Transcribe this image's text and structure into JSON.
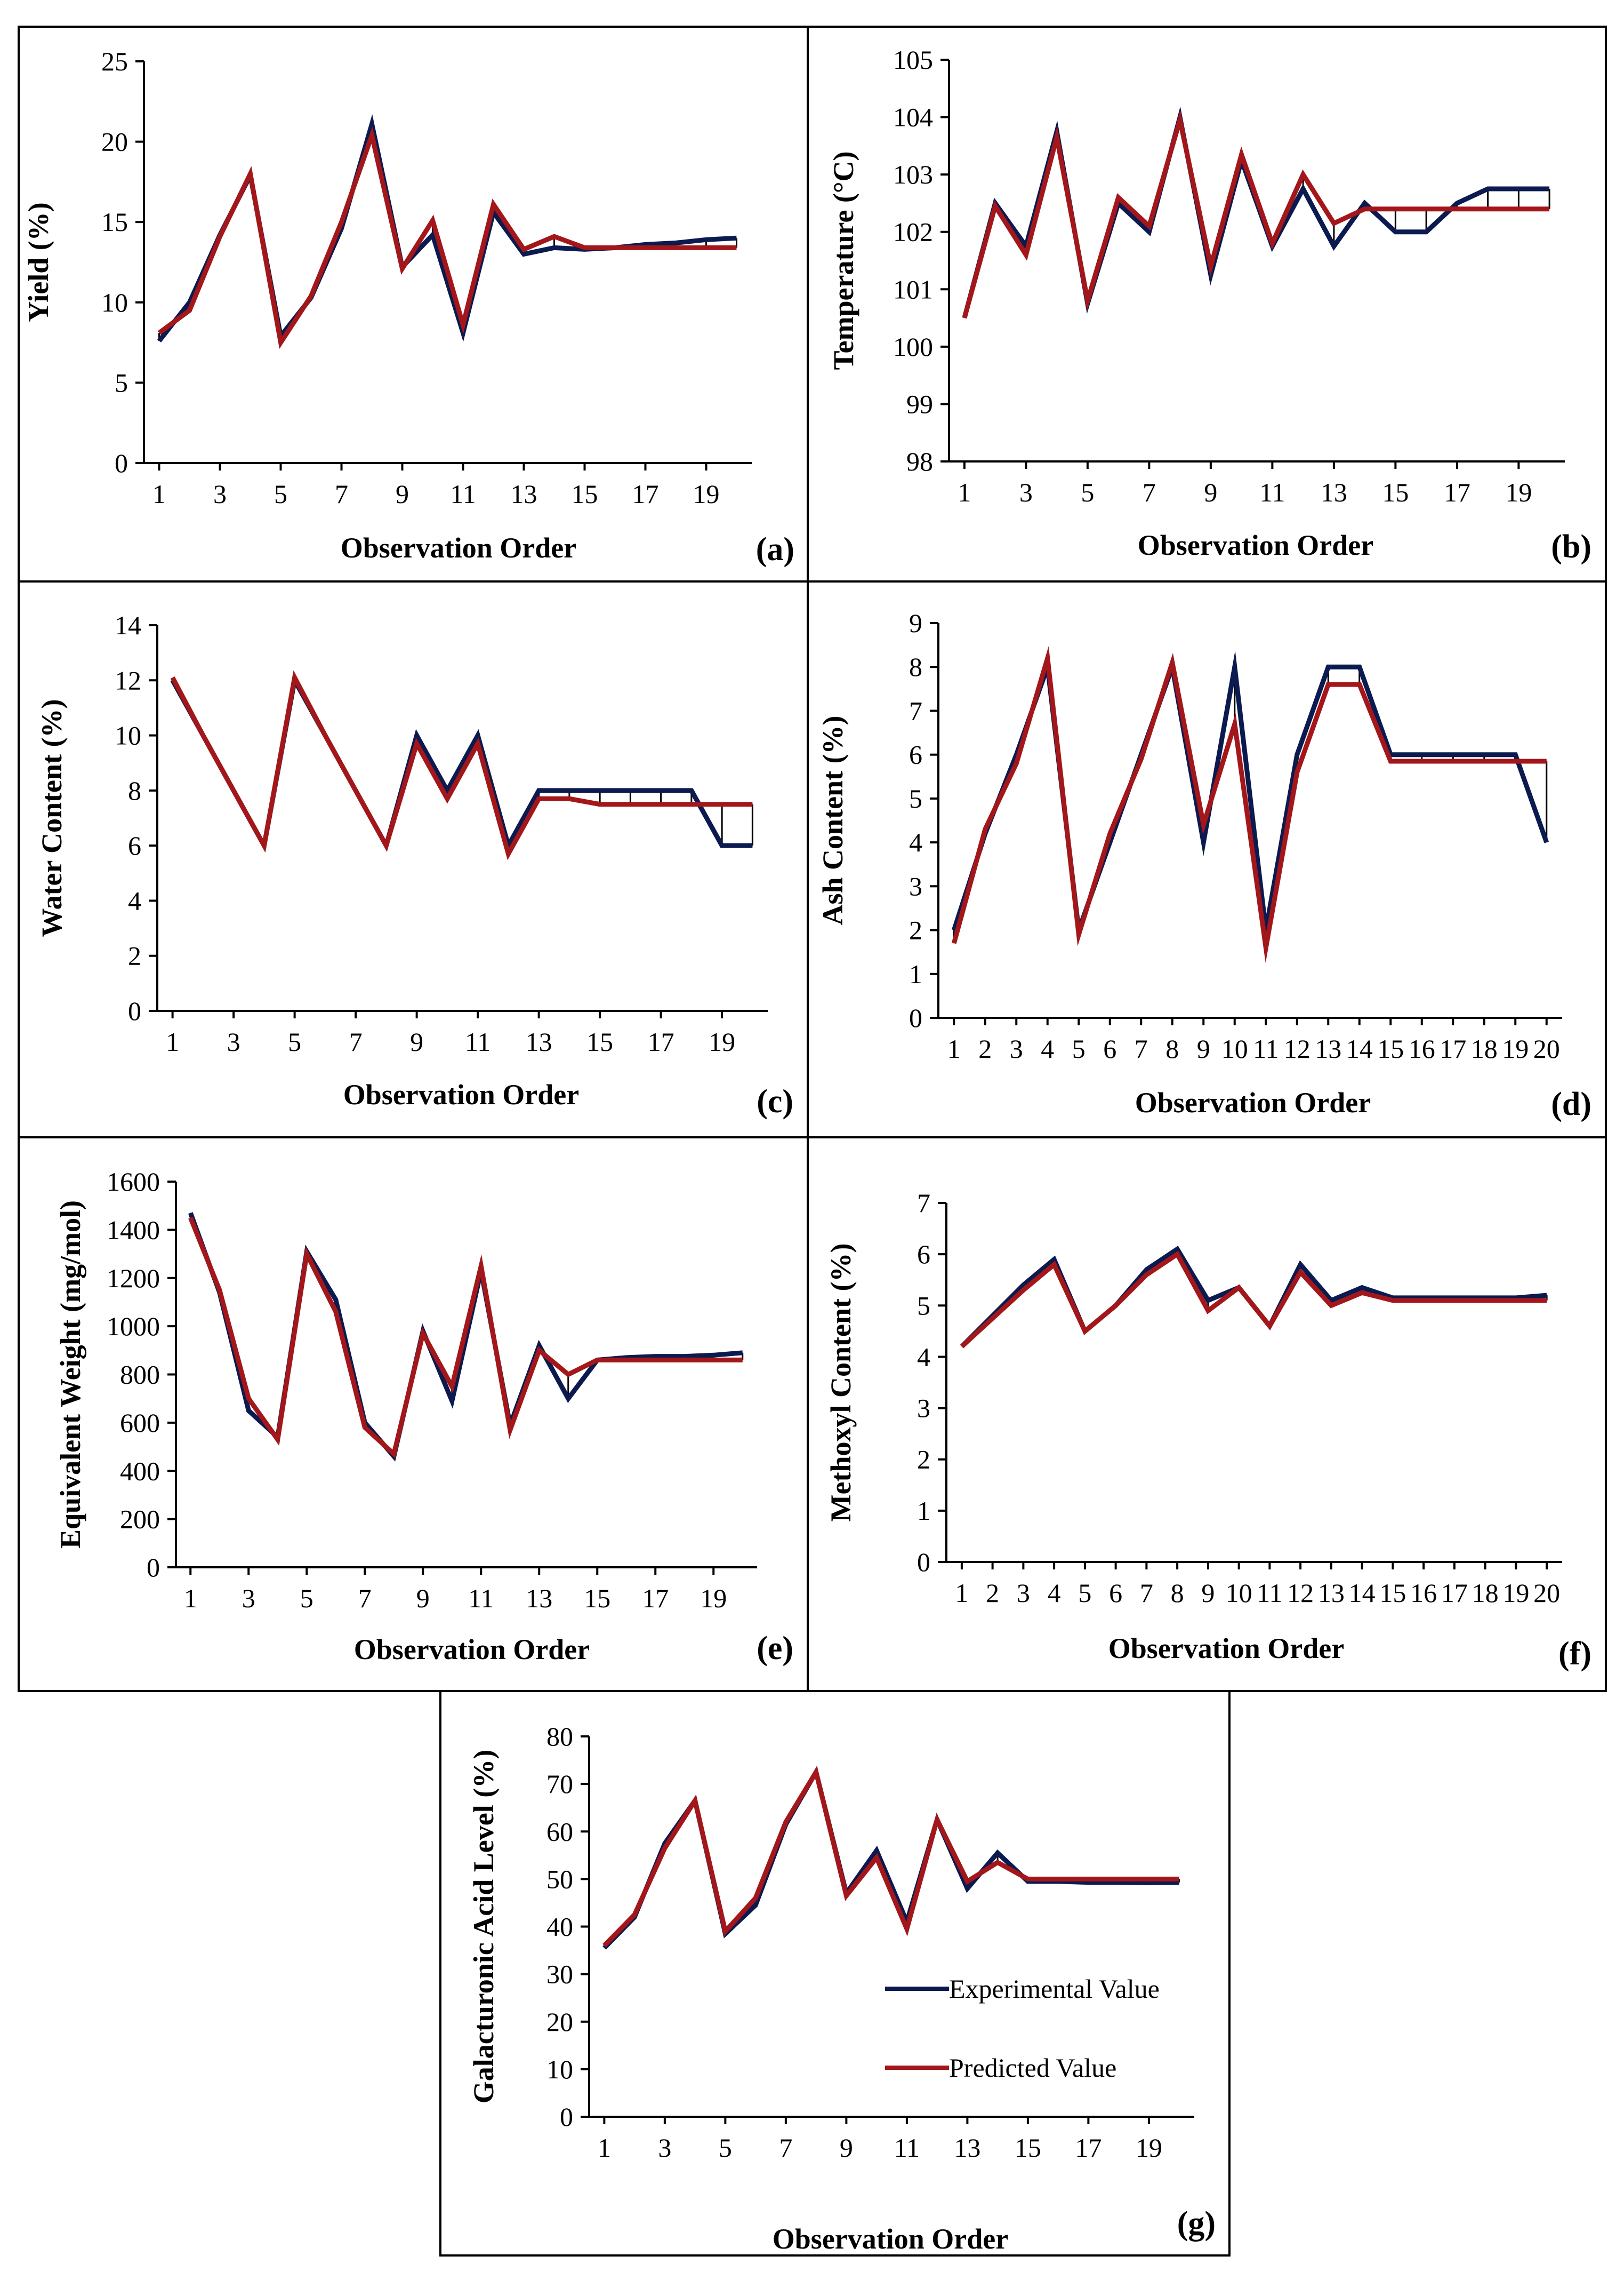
{
  "colors": {
    "experimental": "#0b1a4f",
    "predicted": "#a3171b"
  },
  "legend": {
    "experimental_label": "Experimental Value",
    "predicted_label": "Predicted Value"
  },
  "chart_data": [
    {
      "id": "a",
      "type": "line",
      "panel_label": "(a)",
      "xlabel": "Observation Order",
      "ylabel": "Yield (%)",
      "ylim": [
        0,
        25
      ],
      "yticks": [
        0,
        5,
        10,
        15,
        20,
        25
      ],
      "xticks": [
        1,
        3,
        5,
        7,
        9,
        11,
        13,
        15,
        17,
        19
      ],
      "x": [
        1,
        2,
        3,
        4,
        5,
        6,
        7,
        8,
        9,
        10,
        11,
        12,
        13,
        14,
        15,
        16,
        17,
        18,
        19,
        20
      ],
      "series": [
        {
          "name": "Experimental Value",
          "values": [
            7.6,
            10,
            14.2,
            17.9,
            7.9,
            10.3,
            14.6,
            21.1,
            12.2,
            14.2,
            8.1,
            15.6,
            13,
            13.4,
            13.3,
            13.4,
            13.6,
            13.7,
            13.9,
            14
          ]
        },
        {
          "name": "Predicted Value",
          "values": [
            8.1,
            9.5,
            14.1,
            18,
            7.5,
            10.4,
            15,
            20.4,
            12.1,
            15.1,
            8.6,
            16.1,
            13.3,
            14.1,
            13.4,
            13.4,
            13.4,
            13.4,
            13.4,
            13.4
          ]
        }
      ]
    },
    {
      "id": "b",
      "type": "line",
      "panel_label": "(b)",
      "xlabel": "Observation Order",
      "ylabel": "Temperature (°C)",
      "ylim": [
        98,
        105
      ],
      "yticks": [
        98,
        99,
        100,
        101,
        102,
        103,
        104,
        105
      ],
      "xticks": [
        1,
        3,
        5,
        7,
        9,
        11,
        13,
        15,
        17,
        19
      ],
      "x": [
        1,
        2,
        3,
        4,
        5,
        6,
        7,
        8,
        9,
        10,
        11,
        12,
        13,
        14,
        15,
        16,
        17,
        18,
        19,
        20
      ],
      "series": [
        {
          "name": "Experimental Value",
          "values": [
            100.5,
            102.5,
            101.75,
            103.75,
            100.75,
            102.5,
            102,
            104,
            101.25,
            103.25,
            101.75,
            102.75,
            101.75,
            102.5,
            102,
            102,
            102.5,
            102.75,
            102.75,
            102.75
          ]
        },
        {
          "name": "Predicted Value",
          "values": [
            100.5,
            102.45,
            101.6,
            103.65,
            100.8,
            102.6,
            102.1,
            103.95,
            101.4,
            103.35,
            101.8,
            103,
            102.15,
            102.4,
            102.4,
            102.4,
            102.4,
            102.4,
            102.4,
            102.4
          ]
        }
      ]
    },
    {
      "id": "c",
      "type": "line",
      "panel_label": "(c)",
      "xlabel": "Observation Order",
      "ylabel": "Water Content (%)",
      "ylim": [
        0,
        14
      ],
      "yticks": [
        0,
        2,
        4,
        6,
        8,
        10,
        12,
        14
      ],
      "xticks": [
        1,
        3,
        5,
        7,
        9,
        11,
        13,
        15,
        17,
        19
      ],
      "x": [
        1,
        2,
        3,
        4,
        5,
        6,
        7,
        8,
        9,
        10,
        11,
        12,
        13,
        14,
        15,
        16,
        17,
        18,
        19,
        20
      ],
      "series": [
        {
          "name": "Experimental Value",
          "values": [
            12,
            10,
            8,
            6,
            12,
            10,
            8,
            6,
            10,
            8,
            10,
            6,
            8,
            8,
            8,
            8,
            8,
            8,
            6,
            6
          ]
        },
        {
          "name": "Predicted Value",
          "values": [
            12.1,
            10,
            8,
            6,
            12.1,
            10,
            8,
            6,
            9.7,
            7.7,
            9.7,
            5.7,
            7.7,
            7.7,
            7.5,
            7.5,
            7.5,
            7.5,
            7.5,
            7.5
          ]
        }
      ]
    },
    {
      "id": "d",
      "type": "line",
      "panel_label": "(d)",
      "xlabel": "Observation Order",
      "ylabel": "Ash Content (%)",
      "ylim": [
        0,
        9
      ],
      "yticks": [
        0,
        1,
        2,
        3,
        4,
        5,
        6,
        7,
        8,
        9
      ],
      "xticks": [
        1,
        2,
        3,
        4,
        5,
        6,
        7,
        8,
        9,
        10,
        11,
        12,
        13,
        14,
        15,
        16,
        17,
        18,
        19,
        20
      ],
      "x": [
        1,
        2,
        3,
        4,
        5,
        6,
        7,
        8,
        9,
        10,
        11,
        12,
        13,
        14,
        15,
        16,
        17,
        18,
        19,
        20
      ],
      "series": [
        {
          "name": "Experimental Value",
          "values": [
            2,
            4.2,
            6,
            8,
            2,
            4,
            6,
            8,
            4,
            8,
            2,
            6,
            8,
            8,
            6,
            6,
            6,
            6,
            6,
            4
          ]
        },
        {
          "name": "Predicted Value",
          "values": [
            1.7,
            4.3,
            5.8,
            8.2,
            1.9,
            4.2,
            5.9,
            8.1,
            4.4,
            6.7,
            1.6,
            5.6,
            7.6,
            7.6,
            5.85,
            5.85,
            5.85,
            5.85,
            5.85,
            5.85
          ]
        }
      ]
    },
    {
      "id": "e",
      "type": "line",
      "panel_label": "(e)",
      "xlabel": "Observation Order",
      "ylabel": "Equivalent Weight (mg/mol)",
      "ylim": [
        0,
        1600
      ],
      "yticks": [
        0,
        200,
        400,
        600,
        800,
        1000,
        1200,
        1400,
        1600
      ],
      "xticks": [
        1,
        3,
        5,
        7,
        9,
        11,
        13,
        15,
        17,
        19
      ],
      "x": [
        1,
        2,
        3,
        4,
        5,
        6,
        7,
        8,
        9,
        10,
        11,
        12,
        13,
        14,
        15,
        16,
        17,
        18,
        19,
        20
      ],
      "series": [
        {
          "name": "Experimental Value",
          "values": [
            1470,
            1140,
            650,
            540,
            1310,
            1110,
            600,
            460,
            980,
            690,
            1230,
            590,
            920,
            700,
            860,
            870,
            875,
            875,
            880,
            890
          ]
        },
        {
          "name": "Predicted Value",
          "values": [
            1450,
            1150,
            700,
            530,
            1300,
            1060,
            580,
            470,
            970,
            750,
            1250,
            570,
            900,
            800,
            860,
            860,
            860,
            860,
            860,
            860
          ]
        }
      ]
    },
    {
      "id": "f",
      "type": "line",
      "panel_label": "(f)",
      "xlabel": "Observation Order",
      "ylabel": "Methoxyl Content (%)",
      "ylim": [
        0,
        7
      ],
      "yticks": [
        0,
        1,
        2,
        3,
        4,
        5,
        6,
        7
      ],
      "xticks": [
        1,
        2,
        3,
        4,
        5,
        6,
        7,
        8,
        9,
        10,
        11,
        12,
        13,
        14,
        15,
        16,
        17,
        18,
        19,
        20
      ],
      "x": [
        1,
        2,
        3,
        4,
        5,
        6,
        7,
        8,
        9,
        10,
        11,
        12,
        13,
        14,
        15,
        16,
        17,
        18,
        19,
        20
      ],
      "series": [
        {
          "name": "Experimental Value",
          "values": [
            4.2,
            4.8,
            5.4,
            5.9,
            4.5,
            5,
            5.7,
            6.1,
            5.1,
            5.35,
            4.6,
            5.8,
            5.1,
            5.35,
            5.15,
            5.15,
            5.15,
            5.15,
            5.15,
            5.2
          ]
        },
        {
          "name": "Predicted Value",
          "values": [
            4.2,
            4.75,
            5.3,
            5.8,
            4.5,
            5,
            5.6,
            6,
            4.9,
            5.35,
            4.6,
            5.65,
            5,
            5.25,
            5.1,
            5.1,
            5.1,
            5.1,
            5.1,
            5.1
          ]
        }
      ]
    },
    {
      "id": "g",
      "type": "line",
      "panel_label": "(g)",
      "xlabel": "Observation Order",
      "ylabel": "Galacturonic Acid Level (%)",
      "ylim": [
        0,
        80
      ],
      "yticks": [
        0,
        10,
        20,
        30,
        40,
        50,
        60,
        70,
        80
      ],
      "xticks": [
        1,
        3,
        5,
        7,
        9,
        11,
        13,
        15,
        17,
        19
      ],
      "x": [
        1,
        2,
        3,
        4,
        5,
        6,
        7,
        8,
        9,
        10,
        11,
        12,
        13,
        14,
        15,
        16,
        17,
        18,
        19,
        20
      ],
      "legend": "center-right",
      "series": [
        {
          "name": "Experimental Value",
          "values": [
            35.5,
            42,
            57.5,
            66.5,
            38.5,
            44.5,
            61.5,
            72.5,
            47,
            56,
            41,
            62.5,
            48,
            55.5,
            49.5,
            49.5,
            49.3,
            49.3,
            49.2,
            49.3
          ]
        },
        {
          "name": "Predicted Value",
          "values": [
            36,
            42.5,
            56.5,
            66.5,
            39,
            46,
            62,
            72.5,
            46.5,
            54.5,
            39.5,
            62.5,
            49.5,
            53.5,
            50,
            50,
            50,
            50,
            50,
            50
          ]
        }
      ]
    }
  ]
}
